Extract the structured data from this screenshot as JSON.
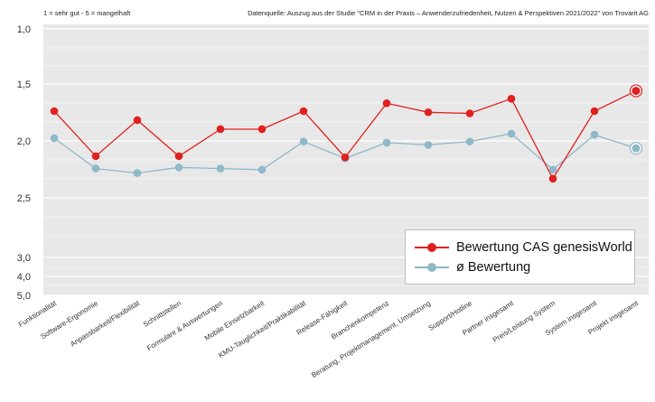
{
  "notes": {
    "scale": "1 = sehr gut   -   5 = mangelhaft",
    "source": "Datenquelle: Auszug aus der Studie \"CRM in der Praxis – Anwenderzufriedenheit, Nutzen & Perspektiven 2021/2022\" von Trovarit AG"
  },
  "colors": {
    "series_cas": "#e02020",
    "series_avg": "#8fb8c8",
    "highlight_label": "#e02020",
    "plot_bg": "#e8e8e8",
    "grid": "#ffffff"
  },
  "chart_data": {
    "type": "line",
    "y_axis": {
      "inverted": true,
      "note": "axis broken below 2,5: labels 3,0 / 4,0 / 5,0 are compressed",
      "tick_labels": [
        "1,0",
        "1,5",
        "2,0",
        "2,5",
        "3,0",
        "4,0",
        "5,0"
      ],
      "tick_values": [
        1.0,
        1.5,
        2.0,
        2.5,
        3.0,
        4.0,
        5.0
      ]
    },
    "grid": true,
    "legend_position": "bottom-right",
    "categories": [
      "Funktionalität",
      "Software-Ergonomie",
      "Anpassbarkeit/Flexibilität",
      "Schnittstellen",
      "Formulare & Auswertungen",
      "Mobile Einsetzbarkeit",
      "KMU-Tauglichkeit/Praktikabilität",
      "Release-Fähigkeit",
      "Branchenkompetenz",
      "Beratung, Projektmanagement, Umsetzung",
      "Support/Hotline",
      "Partner insgesamt",
      "Preis/Leistung System",
      "System insgesamt",
      "Projekt insgesamt"
    ],
    "highlighted_category": "Projekt insgesamt",
    "series": [
      {
        "name": "Bewertung CAS genesisWorld",
        "color": "#e02020",
        "values": [
          1.73,
          2.13,
          1.81,
          2.13,
          1.89,
          1.89,
          1.73,
          2.14,
          1.66,
          1.74,
          1.75,
          1.62,
          2.33,
          1.73,
          1.55
        ]
      },
      {
        "name": "ø Bewertung",
        "color": "#8fb8c8",
        "values": [
          1.97,
          2.24,
          2.28,
          2.23,
          2.24,
          2.25,
          2.0,
          2.15,
          2.01,
          2.03,
          2.0,
          1.93,
          2.25,
          1.94,
          2.06
        ]
      }
    ]
  }
}
